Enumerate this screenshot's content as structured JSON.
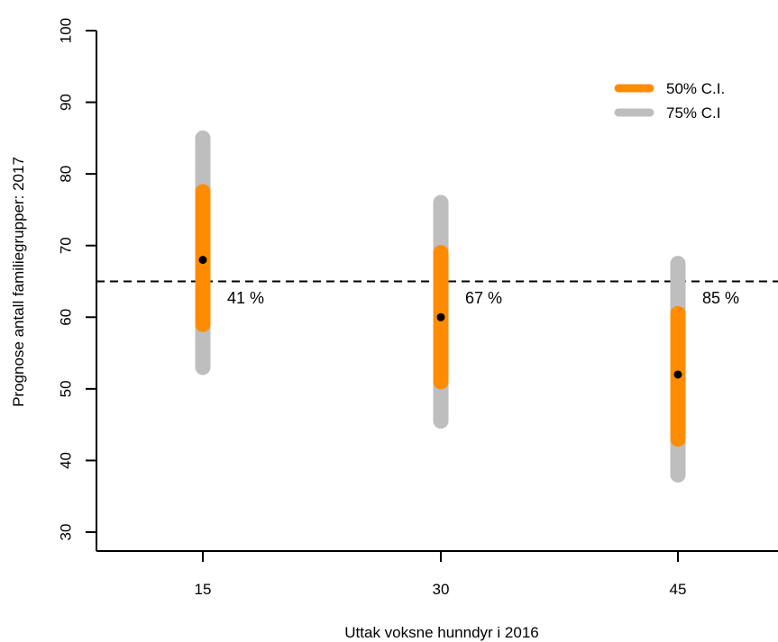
{
  "chart_data": {
    "type": "interval",
    "title": "",
    "xlabel": "Uttak voksne hunndyr i 2016",
    "ylabel": "Prognose antall familiegrupper: 2017",
    "categories": [
      "15",
      "30",
      "45"
    ],
    "x_ticks": [
      "15",
      "30",
      "45"
    ],
    "y_ticks": [
      "30",
      "40",
      "50",
      "60",
      "70",
      "80",
      "90",
      "100"
    ],
    "ylim": [
      30,
      100
    ],
    "grid": false,
    "legend_position": "top-right",
    "reference_line": {
      "y": 65,
      "style": "dashed",
      "color": "#000000"
    },
    "series": [
      {
        "name": "50% C.I.",
        "color": "#FF8C00",
        "intervals": [
          [
            59,
            77.5
          ],
          [
            51,
            69
          ],
          [
            43,
            60.5
          ]
        ]
      },
      {
        "name": "75% C.I",
        "color": "#BEBEBE",
        "intervals": [
          [
            53,
            85
          ],
          [
            45.5,
            76
          ],
          [
            38,
            67.5
          ]
        ]
      }
    ],
    "medians": [
      68,
      60,
      52
    ],
    "annotations": [
      "41 %",
      "67 %",
      "85 %"
    ]
  }
}
